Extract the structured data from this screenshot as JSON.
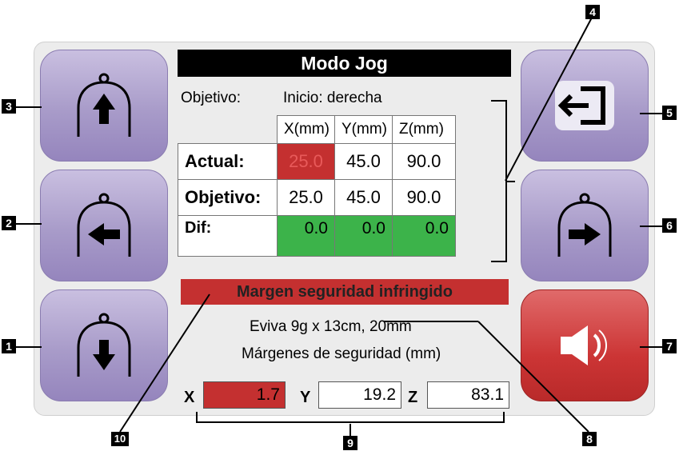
{
  "title": "Modo Jog",
  "objective": {
    "label": "Objetivo:",
    "value": "Inicio: derecha"
  },
  "table": {
    "headers": [
      "X(mm)",
      "Y(mm)",
      "Z(mm)"
    ],
    "rows": [
      {
        "label": "Actual:",
        "values": [
          "25.0",
          "45.0",
          "90.0"
        ]
      },
      {
        "label": "Objetivo:",
        "values": [
          "25.0",
          "45.0",
          "90.0"
        ]
      },
      {
        "label": "Dif:",
        "values": [
          "0.0",
          "0.0",
          "0.0"
        ]
      }
    ]
  },
  "warning": "Margen seguridad infringido",
  "paddle": "Eviva 9g x 13cm, 20mm",
  "margins": {
    "title": "Márgenes de seguridad (mm)",
    "x_label": "X",
    "x_value": "1.7",
    "y_label": "Y",
    "y_value": "19.2",
    "z_label": "Z",
    "z_value": "83.1"
  },
  "callouts": [
    "1",
    "2",
    "3",
    "4",
    "5",
    "6",
    "7",
    "8",
    "9",
    "10"
  ],
  "colors": {
    "button": "#a89bc9",
    "alert": "#c43030",
    "ok": "#3cb34a"
  }
}
